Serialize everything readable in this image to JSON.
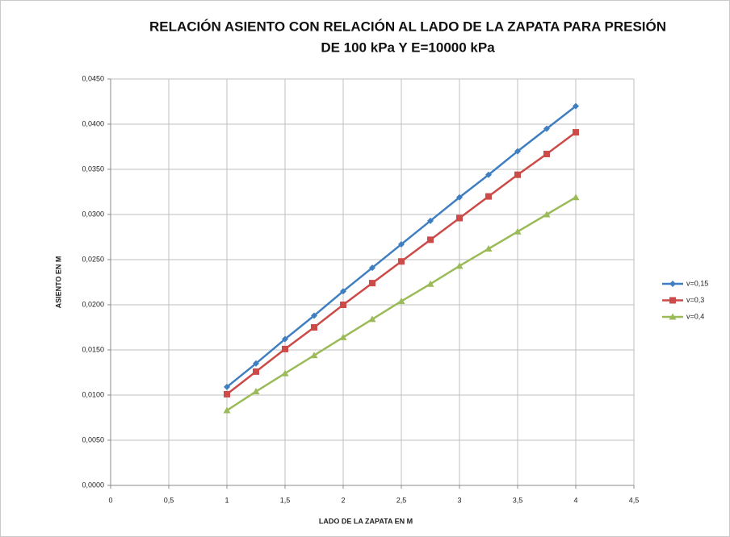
{
  "chart_data": {
    "type": "line",
    "title": [
      "RELACIÓN ASIENTO CON RELACIÓN AL LADO  DE LA ZAPATA PARA PRESIÓN",
      "DE 100 kPa Y E=10000 kPa"
    ],
    "xlabel": "LADO DE LA ZAPATA EN M",
    "ylabel": "ASIENTO EN M",
    "x": [
      1,
      1.25,
      1.5,
      1.75,
      2,
      2.25,
      2.5,
      2.75,
      3,
      3.25,
      3.5,
      3.75,
      4
    ],
    "series": [
      {
        "name": "v=0,15",
        "color": "#3f7fc1",
        "marker": "diamond",
        "values": [
          0.0109,
          0.0135,
          0.0162,
          0.0188,
          0.0215,
          0.0241,
          0.0267,
          0.0293,
          0.0319,
          0.0344,
          0.037,
          0.0395,
          0.042
        ]
      },
      {
        "name": "v=0,3",
        "color": "#cc4a47",
        "marker": "square",
        "values": [
          0.0101,
          0.0126,
          0.0151,
          0.0175,
          0.02,
          0.0224,
          0.0248,
          0.0272,
          0.0296,
          0.032,
          0.0344,
          0.0367,
          0.0391
        ]
      },
      {
        "name": "v=0,4",
        "color": "#9bbb59",
        "marker": "triangle",
        "values": [
          0.0083,
          0.0104,
          0.0124,
          0.0144,
          0.0164,
          0.0184,
          0.0204,
          0.0223,
          0.0243,
          0.0262,
          0.0281,
          0.03,
          0.0319
        ]
      }
    ],
    "xlim": [
      0,
      4.5
    ],
    "xticks": [
      0,
      {
        "value": 0.5,
        "label": "0,5"
      },
      1,
      {
        "value": 1.5,
        "label": "1,5"
      },
      2,
      {
        "value": 2.5,
        "label": "2,5"
      },
      3,
      {
        "value": 3.5,
        "label": "3,5"
      },
      4,
      {
        "value": 4.5,
        "label": "4,5"
      }
    ],
    "ylim": [
      0,
      0.045
    ],
    "yticks": [
      {
        "value": 0,
        "label": "0,0000"
      },
      {
        "value": 0.005,
        "label": "0,0050"
      },
      {
        "value": 0.01,
        "label": "0,0100"
      },
      {
        "value": 0.015,
        "label": "0,0150"
      },
      {
        "value": 0.02,
        "label": "0,0200"
      },
      {
        "value": 0.025,
        "label": "0,0250"
      },
      {
        "value": 0.03,
        "label": "0,0300"
      },
      {
        "value": 0.035,
        "label": "0,0350"
      },
      {
        "value": 0.04,
        "label": "0,0400"
      },
      {
        "value": 0.045,
        "label": "0,0450"
      }
    ],
    "grid": true,
    "legend": "right"
  }
}
